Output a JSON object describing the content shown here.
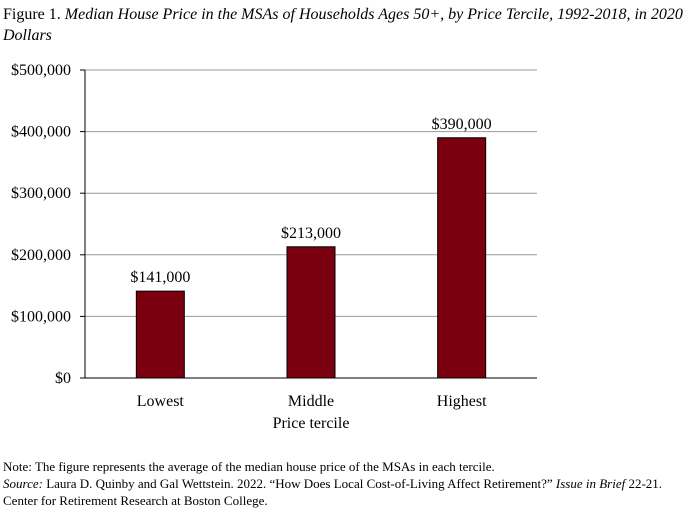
{
  "figure": {
    "label": "Figure 1.",
    "title": "Median House Price in the MSAs of Households Ages 50+, by Price Tercile, 1992-2018, in 2020 Dollars"
  },
  "chart_data": {
    "type": "bar",
    "categories": [
      "Lowest",
      "Middle",
      "Highest"
    ],
    "values": [
      141000,
      213000,
      390000
    ],
    "data_labels": [
      "$141,000",
      "$213,000",
      "$390,000"
    ],
    "xlabel": "Price tercile",
    "ylabel": "",
    "ylim": [
      0,
      500000
    ],
    "yticks": [
      0,
      100000,
      200000,
      300000,
      400000,
      500000
    ],
    "ytick_labels": [
      "$0",
      "$100,000",
      "$200,000",
      "$300,000",
      "$400,000",
      "$500,000"
    ],
    "grid": true,
    "legend": "none",
    "bar_color": "#7a0010"
  },
  "notes": {
    "note": "Note: The figure represents the average of the median house price of the MSAs in each tercile.",
    "source_label": "Source:",
    "source_text": " Laura D. Quinby and Gal Wettstein. 2022. “How Does Local Cost-of-Living Affect Retirement?” ",
    "source_series": "Issue in Brief",
    "source_tail": " 22-21. Center for Retirement Research at Boston College."
  }
}
